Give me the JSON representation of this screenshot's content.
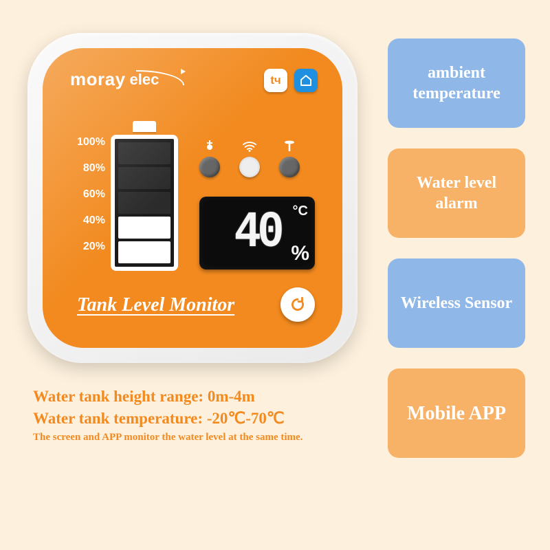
{
  "colors": {
    "page_bg": "#fdf0dd",
    "device_face": "#f28a1f",
    "device_shell": "#f2f2f2",
    "lcd_bg": "#0c0c0c",
    "tile_blue": "#8fb8e8",
    "tile_orange": "#f7b268",
    "text_white": "#ffffff"
  },
  "logo": {
    "word1": "moray",
    "word2": "elec"
  },
  "app_icons": {
    "tuya_glyph": "tч",
    "smartlife_glyph": "⌂"
  },
  "gauge": {
    "ticks": [
      "100%",
      "80%",
      "60%",
      "40%",
      "20%"
    ],
    "segments_top_to_bottom": [
      "dark",
      "dark",
      "dark",
      "on",
      "on"
    ]
  },
  "status_leds": [
    {
      "name": "pump-icon",
      "on": false
    },
    {
      "name": "wifi-icon",
      "on": true
    },
    {
      "name": "tank-icon",
      "on": false
    }
  ],
  "lcd": {
    "value": "40",
    "degree": "°C",
    "percent": "%"
  },
  "device_title": "Tank Level Monitor",
  "specs": {
    "line1": "Water tank height range: 0m-4m",
    "line2": "Water tank temperature: -20℃-70℃",
    "fine": "The screen and APP monitor the water level at the same time."
  },
  "tiles": [
    {
      "style": "blue",
      "label": "ambient temperature"
    },
    {
      "style": "orange",
      "label": "Water level alarm"
    },
    {
      "style": "blue",
      "label": "Wireless Sensor"
    },
    {
      "style": "orange",
      "label": "Mobile APP",
      "big": true
    }
  ]
}
